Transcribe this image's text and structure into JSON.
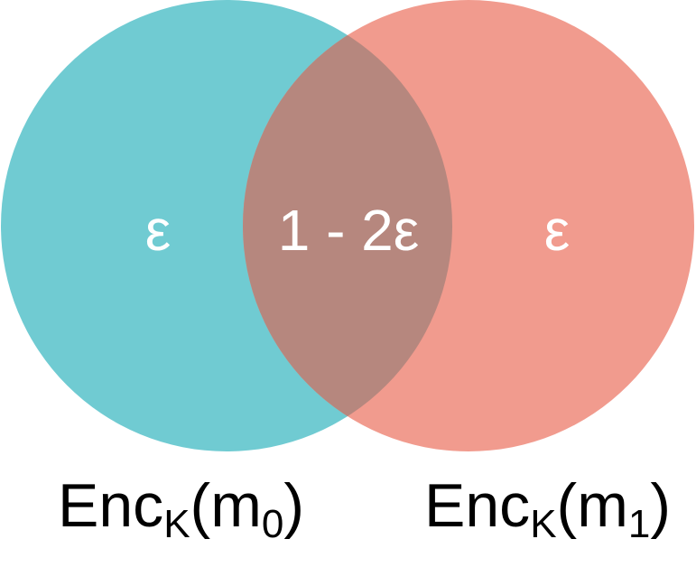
{
  "colors": {
    "left_circle": "#70CBD2",
    "right_circle": "#F19B8E",
    "overlap": "#B6877E",
    "region_text": "#FFFFFF",
    "caption_text": "#000000"
  },
  "regions": {
    "left_only": "ε",
    "overlap": "1 - 2ε",
    "right_only": "ε"
  },
  "captions": {
    "left": {
      "base": "Enc",
      "key": "K",
      "open": "(m",
      "msg_index": "0",
      "close": ")"
    },
    "right": {
      "base": "Enc",
      "key": "K",
      "open": "(m",
      "msg_index": "1",
      "close": ")"
    }
  }
}
